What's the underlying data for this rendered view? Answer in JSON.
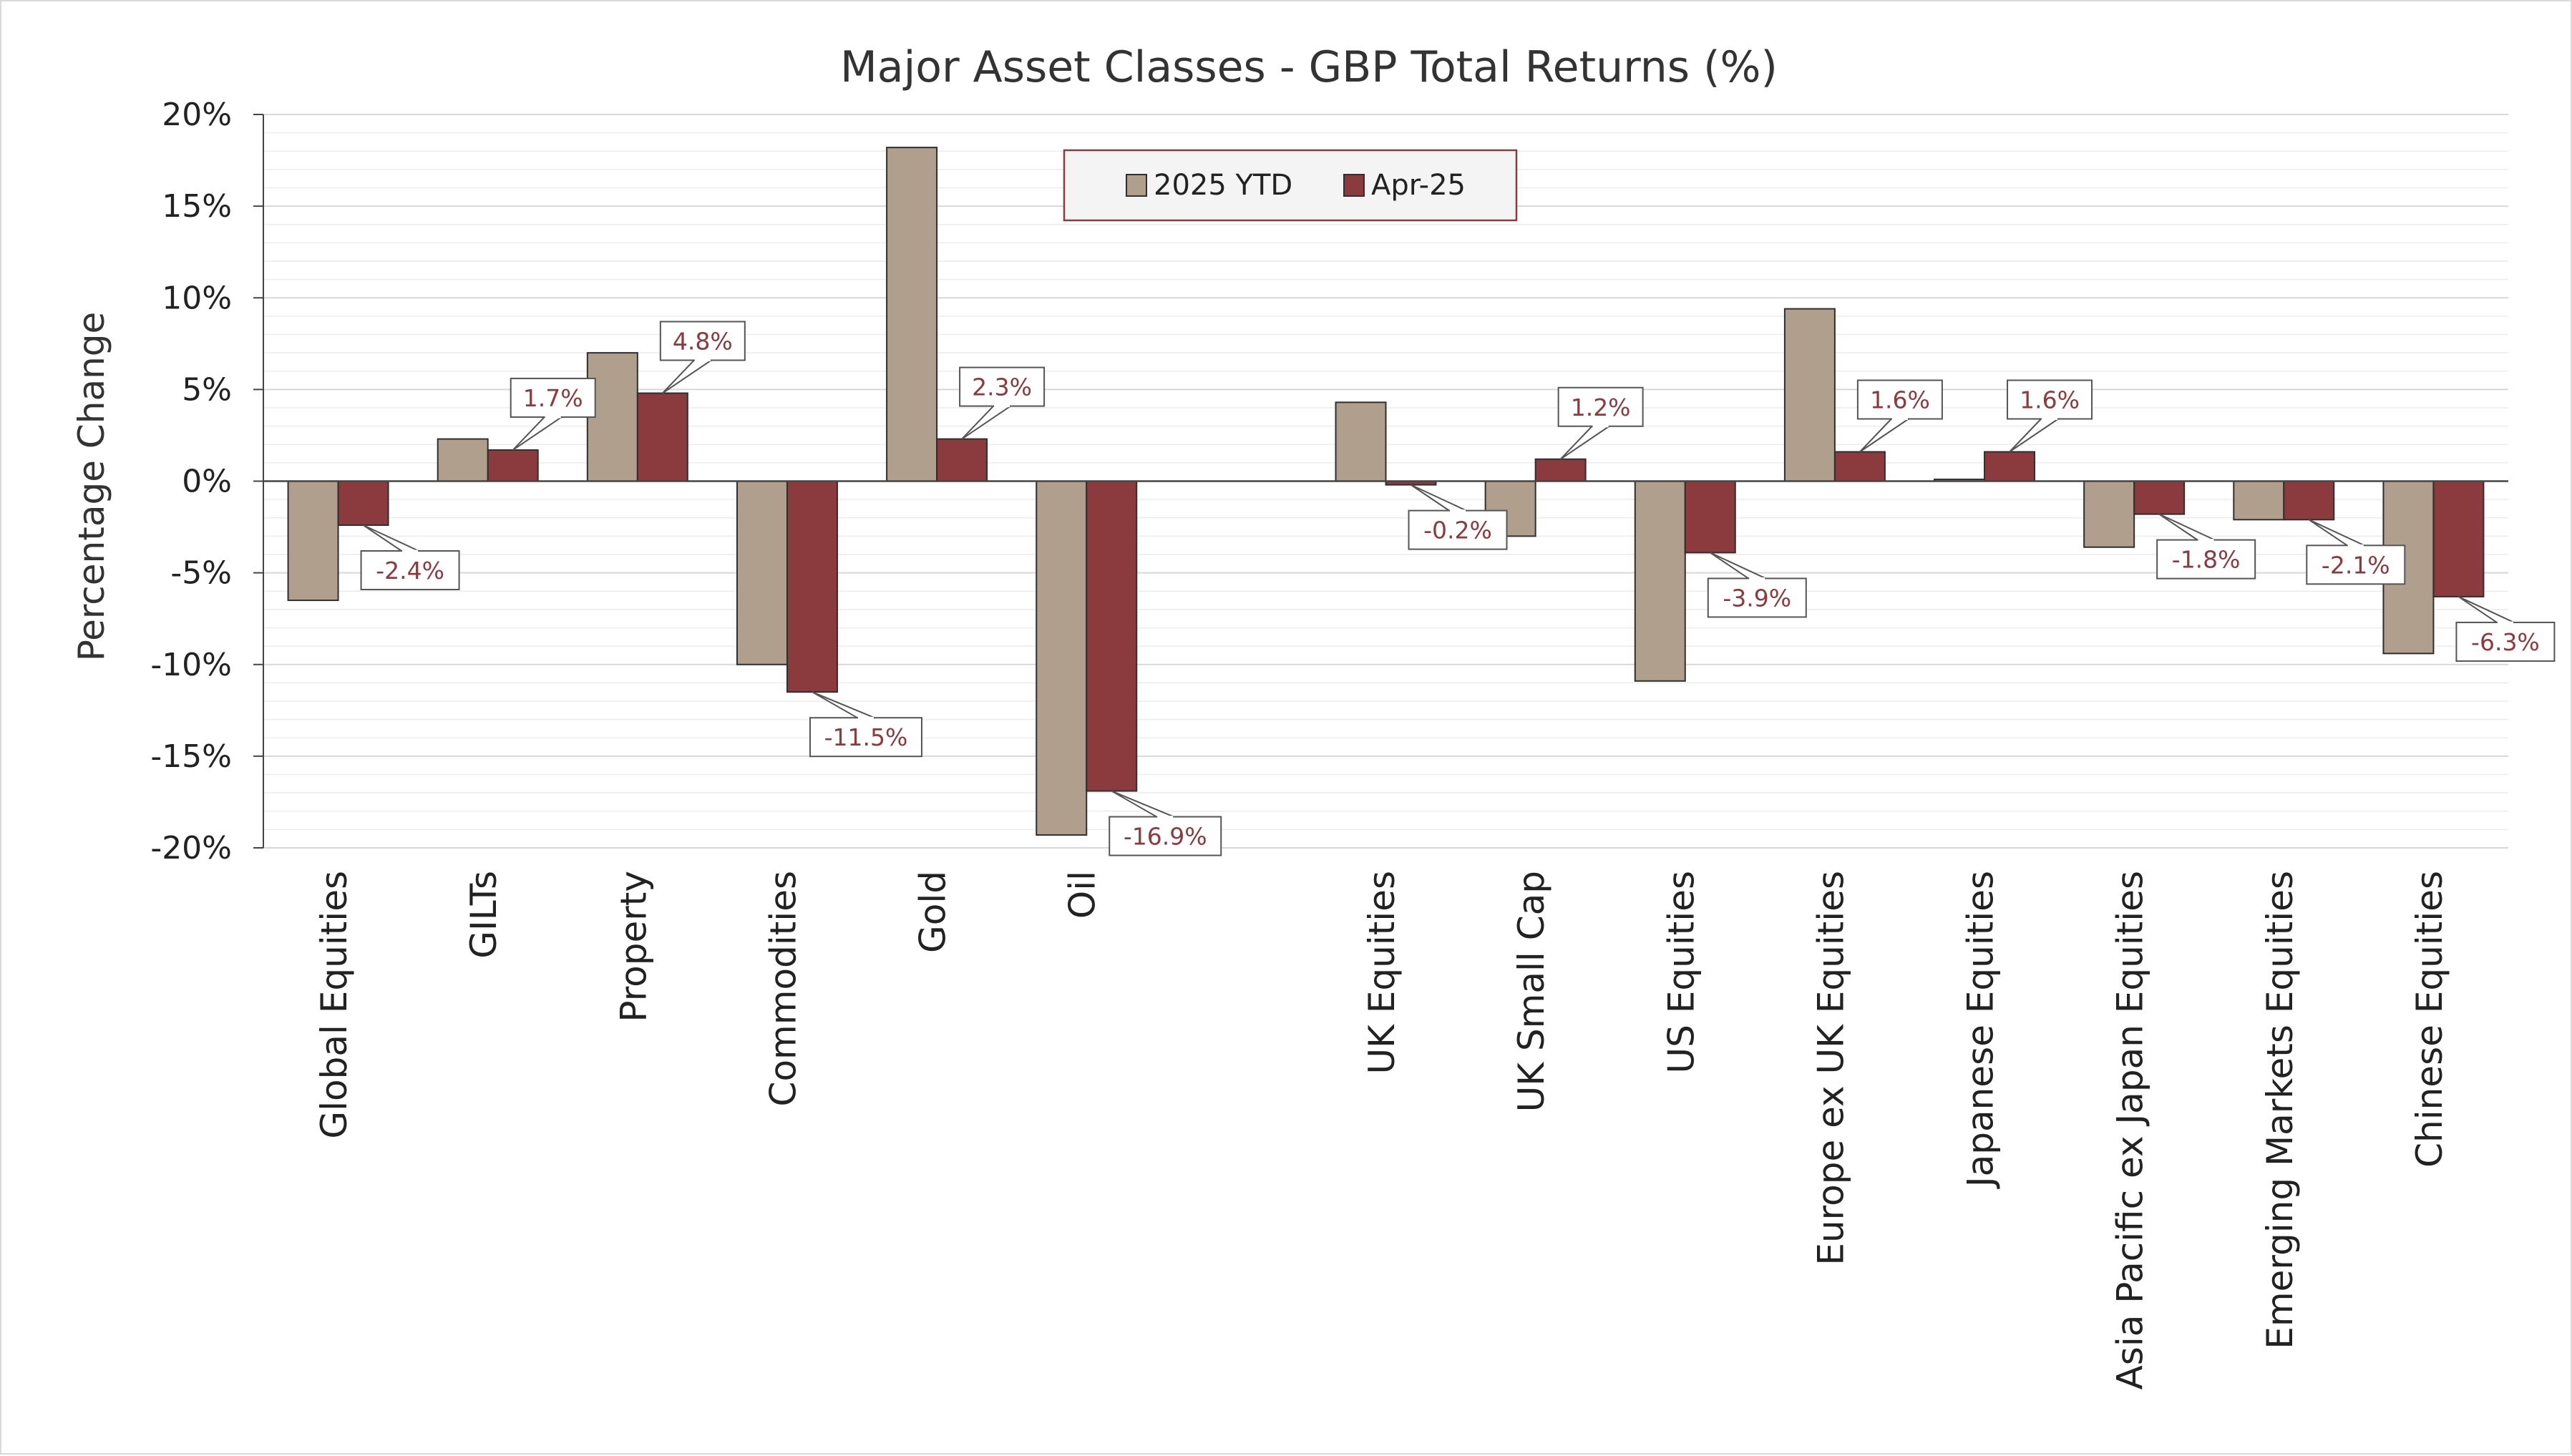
{
  "chart_data": {
    "type": "bar",
    "title": "Major Asset Classes - GBP Total Returns (%)",
    "xlabel": "",
    "ylabel": "Percentage Change",
    "ylim": [
      -20,
      20
    ],
    "yticks": [
      20,
      15,
      10,
      5,
      0,
      -5,
      -10,
      -15,
      -20
    ],
    "ytick_labels": [
      "20%",
      "15%",
      "10%",
      "5%",
      "0%",
      "-5%",
      "-10%",
      "-15%",
      "-20%"
    ],
    "grid": true,
    "legend_position": "top-center",
    "categories": [
      "Global Equities",
      "GILTs",
      "Property",
      "Commodities",
      "Gold",
      "Oil",
      "",
      "UK Equities",
      "UK Small Cap",
      "US Equities",
      "Europe ex UK Equities",
      "Japanese Equities",
      "Asia Pacific ex Japan Equities",
      "Emerging Markets Equities",
      "Chinese Equities"
    ],
    "series": [
      {
        "name": "2025 YTD",
        "color": "#b09f8c",
        "values": [
          -6.5,
          2.3,
          7.0,
          -10.0,
          18.2,
          -19.3,
          null,
          4.3,
          -3.0,
          -10.9,
          9.4,
          0.1,
          -3.6,
          -2.1,
          -9.4
        ]
      },
      {
        "name": "Apr-25",
        "color": "#8b3a3e",
        "values": [
          -2.4,
          1.7,
          4.8,
          -11.5,
          2.3,
          -16.9,
          null,
          -0.2,
          1.2,
          -3.9,
          1.6,
          1.6,
          -1.8,
          -2.1,
          -6.3
        ],
        "data_labels": [
          "-2.4%",
          "1.7%",
          "4.8%",
          "-11.5%",
          "2.3%",
          "-16.9%",
          "",
          "-0.2%",
          "1.2%",
          "-3.9%",
          "1.6%",
          "1.6%",
          "-1.8%",
          "-2.1%",
          "-6.3%"
        ]
      }
    ]
  }
}
